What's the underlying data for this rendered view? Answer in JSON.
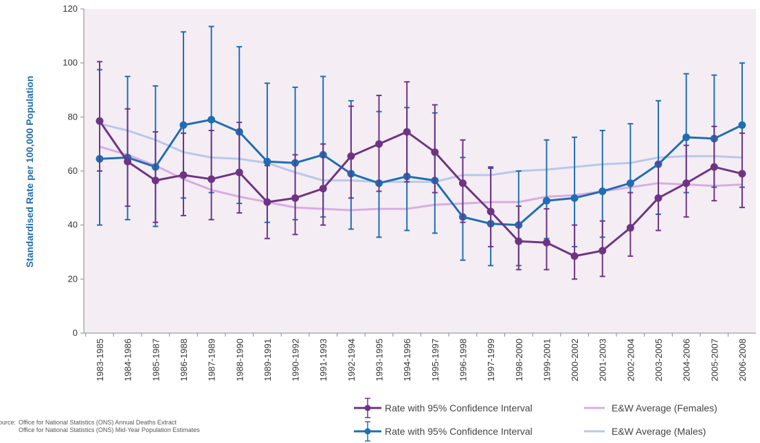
{
  "chart_data": {
    "type": "line",
    "y_label": "Standardised Rate per 100,000 Population",
    "source_label": "Source:",
    "source_lines": [
      "Office for National Statistics (ONS) Annual Deaths Extract",
      "Office for National Statistics (ONS) Mid-Year Population Estimates"
    ],
    "categories": [
      "1983-1985",
      "1984-1986",
      "1985-1987",
      "1986-1988",
      "1987-1989",
      "1988-1990",
      "1989-1991",
      "1990-1992",
      "1991-1993",
      "1992-1994",
      "1993-1995",
      "1994-1996",
      "1995-1997",
      "1996-1998",
      "1997-1999",
      "1998-2000",
      "1999-2001",
      "2000-2002",
      "2001-2003",
      "2002-2004",
      "2003-2005",
      "2004-2006",
      "2005-2007",
      "2006-2008"
    ],
    "ylim": [
      0,
      120
    ],
    "yticks": [
      0,
      20,
      40,
      60,
      80,
      100,
      120
    ],
    "background": "#f4edf4",
    "series": [
      {
        "name": "E&W Average (Males)",
        "color": "#b9c7e9",
        "values": [
          77.5,
          75,
          71.5,
          67,
          65,
          64.5,
          63,
          59.5,
          56.5,
          56.5,
          56,
          56,
          56,
          58.5,
          58.5,
          60,
          60.5,
          61.5,
          62.5,
          63,
          65,
          65.5,
          65.5,
          65
        ]
      },
      {
        "name": "E&W Average (Females)",
        "color": "#d9ace2",
        "values": [
          69,
          66,
          62,
          57,
          53,
          50.5,
          48.5,
          46.5,
          46,
          45.5,
          46,
          46,
          47.5,
          48,
          48.5,
          48.5,
          50.5,
          51,
          52.5,
          54,
          55.5,
          55,
          54.5,
          55
        ]
      },
      {
        "name": "Rate with 95% Confidence Interval",
        "color": "#1f6db3",
        "values": [
          64.5,
          65,
          61.5,
          77,
          79,
          74.5,
          63.5,
          63,
          66,
          59,
          55.5,
          58,
          56.5,
          43,
          40.5,
          40,
          49,
          50,
          52.5,
          55.5,
          62.5,
          72.5,
          72,
          77
        ],
        "ci_low": [
          40,
          42,
          39.5,
          50,
          52,
          48,
          41,
          42,
          43,
          38.5,
          35.5,
          38,
          37,
          27,
          25,
          25,
          35,
          32,
          35.5,
          38,
          44,
          52,
          54,
          54
        ],
        "ci_high": [
          97.5,
          95,
          91.5,
          111.5,
          113.5,
          106,
          92.5,
          91,
          95,
          86,
          82,
          83.5,
          81.5,
          65,
          61,
          60,
          71.5,
          72.5,
          75,
          77.5,
          86,
          96,
          95.5,
          100
        ]
      },
      {
        "name": "Rate with 95% Confidence Interval",
        "color": "#6e3484",
        "values": [
          78.5,
          63.5,
          56.5,
          58.5,
          57,
          59.5,
          48.5,
          50,
          53.5,
          65.5,
          70,
          74.5,
          67,
          55.5,
          45,
          34,
          33.5,
          28.5,
          30.5,
          39,
          50,
          55.5,
          61.5,
          59
        ],
        "ci_low": [
          60,
          47,
          41,
          43.5,
          42,
          44.5,
          35,
          36.5,
          40,
          50,
          52.5,
          56,
          52,
          41,
          32,
          23.5,
          23.5,
          20,
          21,
          28.5,
          38,
          43,
          49,
          46.5
        ],
        "ci_high": [
          100.5,
          83,
          74.5,
          74,
          75,
          78,
          62,
          66,
          70,
          84,
          88,
          93,
          84.5,
          71.5,
          61.5,
          47,
          46,
          40,
          41.5,
          52,
          63,
          69.5,
          76.5,
          74
        ]
      }
    ]
  }
}
